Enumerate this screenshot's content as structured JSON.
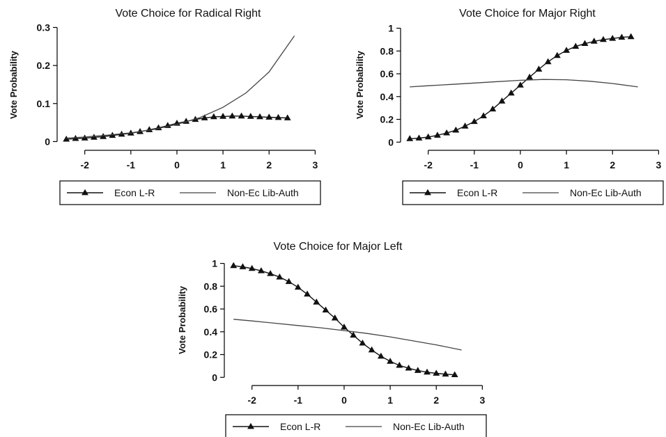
{
  "chart_data": [
    {
      "type": "line",
      "title": "Vote Choice for Radical Right",
      "ylabel": "Vote Probability",
      "xlabel": "",
      "xlim": [
        -2.6,
        3.1
      ],
      "ylim": [
        -0.012,
        0.31
      ],
      "xticks": [
        "-2",
        "-1",
        "0",
        "1",
        "2",
        "3"
      ],
      "yticks": [
        "0",
        "0.1",
        "0.2",
        "0.3"
      ],
      "legend_position": "bottom",
      "series": [
        {
          "name": "Econ L-R",
          "marker": "triangle",
          "x": [
            -2.4,
            -2.2,
            -2.0,
            -1.8,
            -1.6,
            -1.4,
            -1.2,
            -1.0,
            -0.8,
            -0.6,
            -0.4,
            -0.2,
            0.0,
            0.2,
            0.4,
            0.6,
            0.8,
            1.0,
            1.2,
            1.4,
            1.6,
            1.8,
            2.0,
            2.2,
            2.4
          ],
          "y": [
            0.006,
            0.008,
            0.009,
            0.011,
            0.013,
            0.016,
            0.019,
            0.022,
            0.026,
            0.031,
            0.036,
            0.042,
            0.048,
            0.053,
            0.058,
            0.062,
            0.065,
            0.066,
            0.067,
            0.067,
            0.066,
            0.065,
            0.064,
            0.063,
            0.062
          ]
        },
        {
          "name": "Non-Ec Lib-Auth",
          "marker": "none",
          "x": [
            -2.4,
            -2.0,
            -1.5,
            -1.0,
            -0.5,
            0.0,
            0.5,
            1.0,
            1.5,
            2.0,
            2.55
          ],
          "y": [
            0.009,
            0.012,
            0.017,
            0.023,
            0.032,
            0.045,
            0.063,
            0.09,
            0.128,
            0.183,
            0.278
          ]
        }
      ]
    },
    {
      "type": "line",
      "title": "Vote Choice for Major Right",
      "ylabel": "Vote Probability",
      "xlabel": "",
      "xlim": [
        -2.6,
        3.1
      ],
      "ylim": [
        -0.035,
        1.04
      ],
      "xticks": [
        "-2",
        "-1",
        "0",
        "1",
        "2",
        "3"
      ],
      "yticks": [
        "0",
        "0.2",
        "0.4",
        "0.6",
        "0.8",
        "1"
      ],
      "legend_position": "bottom",
      "series": [
        {
          "name": "Econ L-R",
          "marker": "triangle",
          "x": [
            -2.4,
            -2.2,
            -2.0,
            -1.8,
            -1.6,
            -1.4,
            -1.2,
            -1.0,
            -0.8,
            -0.6,
            -0.4,
            -0.2,
            0.0,
            0.2,
            0.4,
            0.6,
            0.8,
            1.0,
            1.2,
            1.4,
            1.6,
            1.8,
            2.0,
            2.2,
            2.4
          ],
          "y": [
            0.03,
            0.035,
            0.045,
            0.06,
            0.08,
            0.105,
            0.14,
            0.18,
            0.23,
            0.29,
            0.36,
            0.43,
            0.5,
            0.57,
            0.64,
            0.705,
            0.76,
            0.805,
            0.84,
            0.865,
            0.885,
            0.9,
            0.91,
            0.92,
            0.925
          ]
        },
        {
          "name": "Non-Ec Lib-Auth",
          "marker": "none",
          "x": [
            -2.4,
            -2.0,
            -1.5,
            -1.0,
            -0.5,
            0.0,
            0.5,
            1.0,
            1.5,
            2.0,
            2.55
          ],
          "y": [
            0.485,
            0.495,
            0.507,
            0.519,
            0.531,
            0.543,
            0.55,
            0.548,
            0.535,
            0.515,
            0.485
          ]
        }
      ]
    },
    {
      "type": "line",
      "title": "Vote Choice for Major Left",
      "ylabel": "Vote Probability",
      "xlabel": "",
      "xlim": [
        -2.6,
        3.1
      ],
      "ylim": [
        -0.035,
        1.04
      ],
      "xticks": [
        "-2",
        "-1",
        "0",
        "1",
        "2",
        "3"
      ],
      "yticks": [
        "0",
        "0.2",
        "0.4",
        "0.6",
        "0.8",
        "1"
      ],
      "legend_position": "bottom",
      "series": [
        {
          "name": "Econ L-R",
          "marker": "triangle",
          "x": [
            -2.4,
            -2.2,
            -2.0,
            -1.8,
            -1.6,
            -1.4,
            -1.2,
            -1.0,
            -0.8,
            -0.6,
            -0.4,
            -0.2,
            0.0,
            0.2,
            0.4,
            0.6,
            0.8,
            1.0,
            1.2,
            1.4,
            1.6,
            1.8,
            2.0,
            2.2,
            2.4
          ],
          "y": [
            0.98,
            0.97,
            0.955,
            0.935,
            0.91,
            0.88,
            0.84,
            0.79,
            0.73,
            0.66,
            0.59,
            0.52,
            0.44,
            0.37,
            0.3,
            0.24,
            0.185,
            0.14,
            0.105,
            0.08,
            0.06,
            0.045,
            0.035,
            0.028,
            0.022
          ]
        },
        {
          "name": "Non-Ec Lib-Auth",
          "marker": "none",
          "x": [
            -2.4,
            -2.0,
            -1.5,
            -1.0,
            -0.5,
            0.0,
            0.5,
            1.0,
            1.5,
            2.0,
            2.55
          ],
          "y": [
            0.51,
            0.495,
            0.475,
            0.455,
            0.435,
            0.41,
            0.385,
            0.355,
            0.32,
            0.285,
            0.24
          ]
        }
      ]
    }
  ]
}
